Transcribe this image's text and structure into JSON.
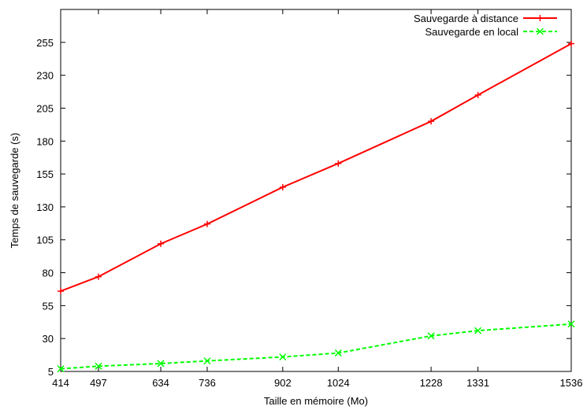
{
  "chart_data": {
    "type": "line",
    "xlabel": "Taille en mémoire (Mo)",
    "ylabel": "Temps de sauvegarde (s)",
    "x": [
      414,
      497,
      634,
      736,
      902,
      1024,
      1228,
      1331,
      1536
    ],
    "xlim": [
      414,
      1536
    ],
    "ylim": [
      5,
      280
    ],
    "yticks": [
      5,
      30,
      55,
      80,
      105,
      130,
      155,
      180,
      205,
      230,
      255
    ],
    "grid": false,
    "legend_position": "top-right",
    "series": [
      {
        "name": "Sauvegarde à distance",
        "color": "#ff0000",
        "marker": "plus",
        "line": "solid",
        "values": [
          66,
          77,
          102,
          117,
          145,
          163,
          195,
          215,
          254
        ]
      },
      {
        "name": "Sauvegarde en local",
        "color": "#00ff00",
        "marker": "cross",
        "line": "dashed",
        "values": [
          7,
          9,
          11,
          13,
          16,
          19,
          32,
          36,
          41
        ]
      }
    ]
  }
}
